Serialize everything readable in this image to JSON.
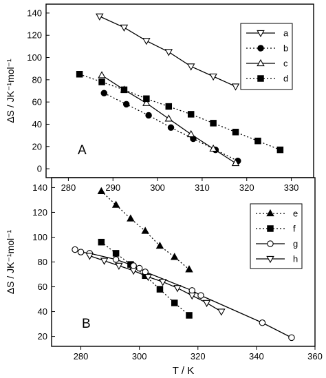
{
  "chart_data": [
    {
      "type": "line",
      "panel_label": "A",
      "xlabel": "",
      "ylabel": "ΔS / JK⁻¹mol⁻¹",
      "xlim": [
        275,
        335
      ],
      "ylim": [
        -8,
        148
      ],
      "x_ticks": [
        280,
        290,
        300,
        310,
        320,
        330
      ],
      "y_ticks": [
        0,
        20,
        40,
        60,
        80,
        100,
        120,
        140
      ],
      "legend_position": "top-right",
      "series": [
        {
          "name": "a",
          "marker": "triangle-down-open",
          "line": "solid",
          "x": [
            287,
            292.5,
            297.5,
            302.5,
            307.5,
            312.5,
            317.5
          ],
          "y": [
            137,
            127,
            115,
            105,
            92,
            83,
            74
          ]
        },
        {
          "name": "b",
          "marker": "circle-filled",
          "line": "dotted",
          "x": [
            288,
            293,
            298,
            303,
            308,
            313,
            318
          ],
          "y": [
            68,
            58,
            48,
            37,
            27,
            17,
            7
          ]
        },
        {
          "name": "c",
          "marker": "triangle-up-open",
          "line": "solid",
          "x": [
            287.5,
            292.5,
            297.5,
            302.5,
            307.5,
            312.5,
            317.5
          ],
          "y": [
            84,
            71,
            59,
            45,
            31,
            18,
            5
          ]
        },
        {
          "name": "d",
          "marker": "square-filled",
          "line": "dotted",
          "x": [
            282.5,
            287.5,
            292.5,
            297.5,
            302.5,
            307.5,
            312.5,
            317.5,
            322.5,
            327.5
          ],
          "y": [
            85,
            78,
            71,
            63,
            56,
            49,
            41,
            33,
            25,
            17
          ]
        }
      ]
    },
    {
      "type": "line",
      "panel_label": "B",
      "xlabel": "T / K",
      "ylabel": "ΔS / JK⁻¹mol⁻¹",
      "xlim": [
        270,
        360
      ],
      "ylim": [
        12,
        148
      ],
      "x_ticks": [
        280,
        300,
        320,
        340,
        360
      ],
      "x_tick_labels": [
        "280",
        "300",
        "320",
        "340",
        "360"
      ],
      "y_ticks": [
        20,
        40,
        60,
        80,
        100,
        120,
        140
      ],
      "legend_position": "top-right",
      "series": [
        {
          "name": "e",
          "marker": "triangle-up-filled",
          "line": "dotted",
          "x": [
            287,
            292,
            297,
            302,
            307,
            312,
            317
          ],
          "y": [
            137,
            126,
            115,
            105,
            93,
            84,
            74
          ]
        },
        {
          "name": "f",
          "marker": "square-filled",
          "line": "dotted",
          "x": [
            287,
            292,
            297,
            302,
            307,
            312,
            317
          ],
          "y": [
            96,
            87,
            78,
            69,
            58,
            47,
            37
          ]
        },
        {
          "name": "g",
          "marker": "circle-open",
          "line": "solid",
          "x": [
            278,
            280,
            283,
            292,
            298,
            300,
            302,
            318,
            321,
            342,
            352
          ],
          "y": [
            90,
            88,
            87,
            82,
            77,
            75,
            72,
            57,
            53,
            31,
            19
          ]
        },
        {
          "name": "h",
          "marker": "triangle-down-open",
          "line": "solid",
          "x": [
            283,
            288,
            293,
            298,
            303,
            308,
            313,
            318,
            323,
            328
          ],
          "y": [
            85,
            81,
            77,
            73,
            68,
            64,
            59,
            53,
            47,
            40
          ]
        }
      ]
    }
  ]
}
